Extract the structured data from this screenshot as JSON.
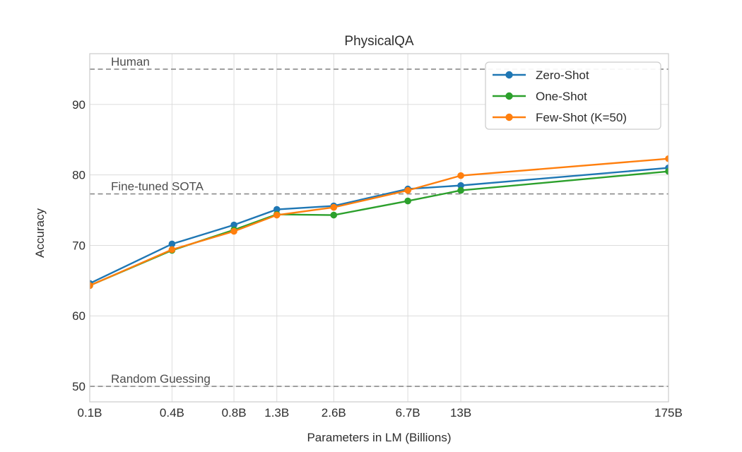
{
  "figure": {
    "title": "PhysicalQA",
    "xlabel": "Parameters in LM (Billions)",
    "ylabel": "Accuracy"
  },
  "chart_data": {
    "type": "line",
    "title": "PhysicalQA",
    "xlabel": "Parameters in LM (Billions)",
    "ylabel": "Accuracy",
    "x_scale": "log",
    "grid": true,
    "legend_position": "upper right",
    "x_tick_labels": [
      "0.1B",
      "0.4B",
      "0.8B",
      "1.3B",
      "2.6B",
      "6.7B",
      "13B",
      "175B"
    ],
    "x_values_billions": [
      0.125,
      0.35,
      0.76,
      1.3,
      2.65,
      6.7,
      13,
      175
    ],
    "xlim_billions": [
      0.125,
      175
    ],
    "yticks": [
      50,
      60,
      70,
      80,
      90
    ],
    "ylim": [
      47.8,
      97.2
    ],
    "series": [
      {
        "name": "Zero-Shot",
        "color": "#1f77b4",
        "values": [
          64.6,
          70.2,
          72.9,
          75.1,
          75.6,
          78.0,
          78.5,
          81.0
        ]
      },
      {
        "name": "One-Shot",
        "color": "#2ca02c",
        "values": [
          64.3,
          69.3,
          72.2,
          74.4,
          74.3,
          76.3,
          77.8,
          80.5
        ]
      },
      {
        "name": "Few-Shot (K=50)",
        "color": "#ff7f0e",
        "values": [
          64.3,
          69.4,
          72.0,
          74.3,
          75.4,
          77.8,
          79.9,
          82.3
        ]
      }
    ],
    "reference_lines": [
      {
        "label": "Human",
        "value": 95.0,
        "style": "dashed",
        "color": "#8a8a8a"
      },
      {
        "label": "Fine-tuned SOTA",
        "value": 77.3,
        "style": "dashed",
        "color": "#8a8a8a"
      },
      {
        "label": "Random Guessing",
        "value": 50.0,
        "style": "dashed",
        "color": "#8a8a8a"
      }
    ],
    "style": {
      "grid_color": "#dcdcdc",
      "spine_color": "#cccccc",
      "background": "#ffffff"
    }
  }
}
